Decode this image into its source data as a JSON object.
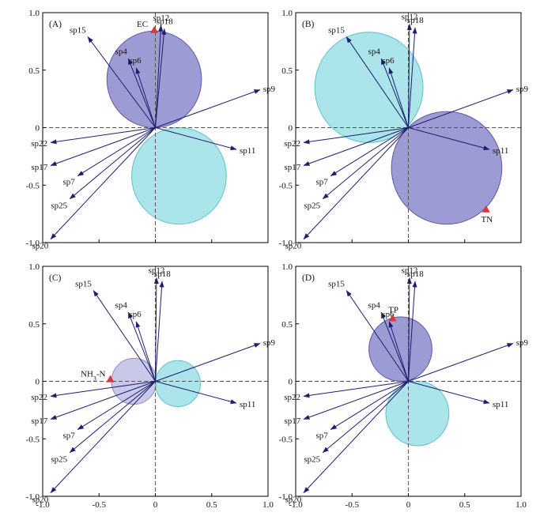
{
  "colors": {
    "arrow": "#1e1e6e",
    "circle_positive": "#7b79c6",
    "circle_negative": "#8fdbe2",
    "circle_light": "#b7b5e0",
    "env_marker": "#d9383a",
    "dashed_line": "#555555",
    "frame": "#000000"
  },
  "chart_data": [
    {
      "type": "scatter",
      "panel": "(A)",
      "xlim": [
        -1.0,
        1.0
      ],
      "ylim": [
        -1.0,
        1.0
      ],
      "x_ticks": [
        "-1.0",
        "-0.5",
        "0",
        "0.5",
        "1.0"
      ],
      "y_ticks": [
        "-1.0",
        "-0.5",
        "0",
        "0.5",
        "1.0"
      ],
      "show_x_ticks": false,
      "show_y_ticks": true,
      "species": [
        {
          "name": "sp12",
          "x": 0.05,
          "y": 0.89
        },
        {
          "name": "sp18",
          "x": 0.08,
          "y": 0.86
        },
        {
          "name": "sp15",
          "x": -0.6,
          "y": 0.79
        },
        {
          "name": "sp4",
          "x": -0.24,
          "y": 0.6
        },
        {
          "name": "sp6",
          "x": -0.17,
          "y": 0.52
        },
        {
          "name": "sp9",
          "x": 0.93,
          "y": 0.33
        },
        {
          "name": "sp11",
          "x": 0.72,
          "y": -0.19
        },
        {
          "name": "sp22",
          "x": -0.93,
          "y": -0.13
        },
        {
          "name": "sp17",
          "x": -0.93,
          "y": -0.33
        },
        {
          "name": "sp7",
          "x": -0.69,
          "y": -0.42
        },
        {
          "name": "sp25",
          "x": -0.76,
          "y": -0.62
        },
        {
          "name": "sp20",
          "x": -0.93,
          "y": -0.97
        }
      ],
      "env": {
        "name": "EC",
        "x": -0.01,
        "y": 0.85
      },
      "circles": [
        {
          "cx": -0.01,
          "cy": 0.42,
          "r": 0.42,
          "fill": "positive"
        },
        {
          "cx": 0.21,
          "cy": -0.42,
          "r": 0.42,
          "fill": "negative"
        }
      ]
    },
    {
      "type": "scatter",
      "panel": "(B)",
      "xlim": [
        -1.0,
        1.0
      ],
      "ylim": [
        -1.0,
        1.0
      ],
      "x_ticks": [
        "-1.0",
        "-0.5",
        "0",
        "0.5",
        "1.0"
      ],
      "y_ticks": [
        "-1.0",
        "-0.5",
        "0",
        "0.5",
        "1.0"
      ],
      "show_x_ticks": false,
      "show_y_ticks": true,
      "species": [
        {
          "name": "sp12",
          "x": 0.01,
          "y": 0.9
        },
        {
          "name": "sp18",
          "x": 0.06,
          "y": 0.87
        },
        {
          "name": "sp15",
          "x": -0.55,
          "y": 0.79
        },
        {
          "name": "sp4",
          "x": -0.24,
          "y": 0.6
        },
        {
          "name": "sp6",
          "x": -0.17,
          "y": 0.52
        },
        {
          "name": "sp9",
          "x": 0.93,
          "y": 0.33
        },
        {
          "name": "sp11",
          "x": 0.72,
          "y": -0.19
        },
        {
          "name": "sp22",
          "x": -0.93,
          "y": -0.13
        },
        {
          "name": "sp17",
          "x": -0.93,
          "y": -0.33
        },
        {
          "name": "sp7",
          "x": -0.69,
          "y": -0.42
        },
        {
          "name": "sp25",
          "x": -0.76,
          "y": -0.62
        },
        {
          "name": "sp20",
          "x": -0.93,
          "y": -0.97
        }
      ],
      "env": {
        "name": "TN",
        "x": 0.69,
        "y": -0.71
      },
      "circles": [
        {
          "cx": -0.35,
          "cy": 0.35,
          "r": 0.48,
          "fill": "negative"
        },
        {
          "cx": 0.34,
          "cy": -0.35,
          "r": 0.49,
          "fill": "positive"
        }
      ]
    },
    {
      "type": "scatter",
      "panel": "(C)",
      "xlim": [
        -1.0,
        1.0
      ],
      "ylim": [
        -1.0,
        1.0
      ],
      "x_ticks": [
        "-1.0",
        "-0.5",
        "0",
        "0.5",
        "1.0"
      ],
      "y_ticks": [
        "-1.0",
        "-0.5",
        "0",
        "0.5",
        "1.0"
      ],
      "show_x_ticks": true,
      "show_y_ticks": true,
      "species": [
        {
          "name": "sp12",
          "x": 0.01,
          "y": 0.9
        },
        {
          "name": "sp18",
          "x": 0.06,
          "y": 0.87
        },
        {
          "name": "sp15",
          "x": -0.55,
          "y": 0.79
        },
        {
          "name": "sp4",
          "x": -0.24,
          "y": 0.6
        },
        {
          "name": "sp6",
          "x": -0.17,
          "y": 0.52
        },
        {
          "name": "sp9",
          "x": 0.93,
          "y": 0.33
        },
        {
          "name": "sp11",
          "x": 0.72,
          "y": -0.19
        },
        {
          "name": "sp22",
          "x": -0.93,
          "y": -0.13
        },
        {
          "name": "sp17",
          "x": -0.93,
          "y": -0.33
        },
        {
          "name": "sp7",
          "x": -0.69,
          "y": -0.42
        },
        {
          "name": "sp25",
          "x": -0.76,
          "y": -0.62
        },
        {
          "name": "sp20",
          "x": -0.93,
          "y": -0.97
        }
      ],
      "env": {
        "name": "NH",
        "name_sub": "3",
        "name_suffix": "-N",
        "x": -0.4,
        "y": 0.02
      },
      "circles": [
        {
          "cx": -0.19,
          "cy": 0.0,
          "r": 0.2,
          "fill": "light"
        },
        {
          "cx": 0.2,
          "cy": -0.02,
          "r": 0.2,
          "fill": "negative"
        }
      ]
    },
    {
      "type": "scatter",
      "panel": "(D)",
      "xlim": [
        -1.0,
        1.0
      ],
      "ylim": [
        -1.0,
        1.0
      ],
      "x_ticks": [
        "-1.0",
        "-0.5",
        "0",
        "0.5",
        "1.0"
      ],
      "y_ticks": [
        "-1.0",
        "-0.5",
        "0",
        "0.5",
        "1.0"
      ],
      "show_x_ticks": true,
      "show_y_ticks": true,
      "species": [
        {
          "name": "sp12",
          "x": 0.01,
          "y": 0.9
        },
        {
          "name": "sp18",
          "x": 0.06,
          "y": 0.87
        },
        {
          "name": "sp15",
          "x": -0.55,
          "y": 0.79
        },
        {
          "name": "sp4",
          "x": -0.24,
          "y": 0.6
        },
        {
          "name": "sp6",
          "x": -0.17,
          "y": 0.52
        },
        {
          "name": "sp9",
          "x": 0.93,
          "y": 0.33
        },
        {
          "name": "sp11",
          "x": 0.72,
          "y": -0.19
        },
        {
          "name": "sp22",
          "x": -0.93,
          "y": -0.13
        },
        {
          "name": "sp17",
          "x": -0.93,
          "y": -0.33
        },
        {
          "name": "sp7",
          "x": -0.69,
          "y": -0.42
        },
        {
          "name": "sp25",
          "x": -0.76,
          "y": -0.62
        },
        {
          "name": "sp20",
          "x": -0.93,
          "y": -0.97
        }
      ],
      "env": {
        "name": "TP",
        "x": -0.14,
        "y": 0.55
      },
      "circles": [
        {
          "cx": -0.07,
          "cy": 0.28,
          "r": 0.28,
          "fill": "positive"
        },
        {
          "cx": 0.08,
          "cy": -0.28,
          "r": 0.28,
          "fill": "negative"
        }
      ]
    }
  ]
}
